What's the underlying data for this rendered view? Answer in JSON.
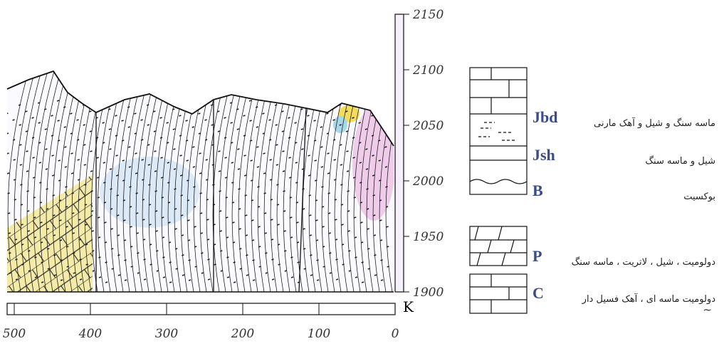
{
  "section": {
    "elevation_ticks": [
      2150,
      2100,
      2050,
      2000,
      1950,
      1900
    ],
    "distance_ticks": [
      500,
      400,
      300,
      200,
      100,
      0
    ],
    "scale_unit": "K"
  },
  "legend": [
    {
      "code": "Jbd",
      "description": "ماسه سنگ و شیل و آهک مارنی"
    },
    {
      "code": "Jsh",
      "description": "شیل و ماسه سنگ"
    },
    {
      "code": "B",
      "description": "بوکسیت"
    },
    {
      "code": "P",
      "description": "دولومیت ، شیل ، لاتریت ، ماسه سنگ"
    },
    {
      "code": "C",
      "description": "دولومیت ماسه ای ، آهک فسیل دار"
    }
  ]
}
